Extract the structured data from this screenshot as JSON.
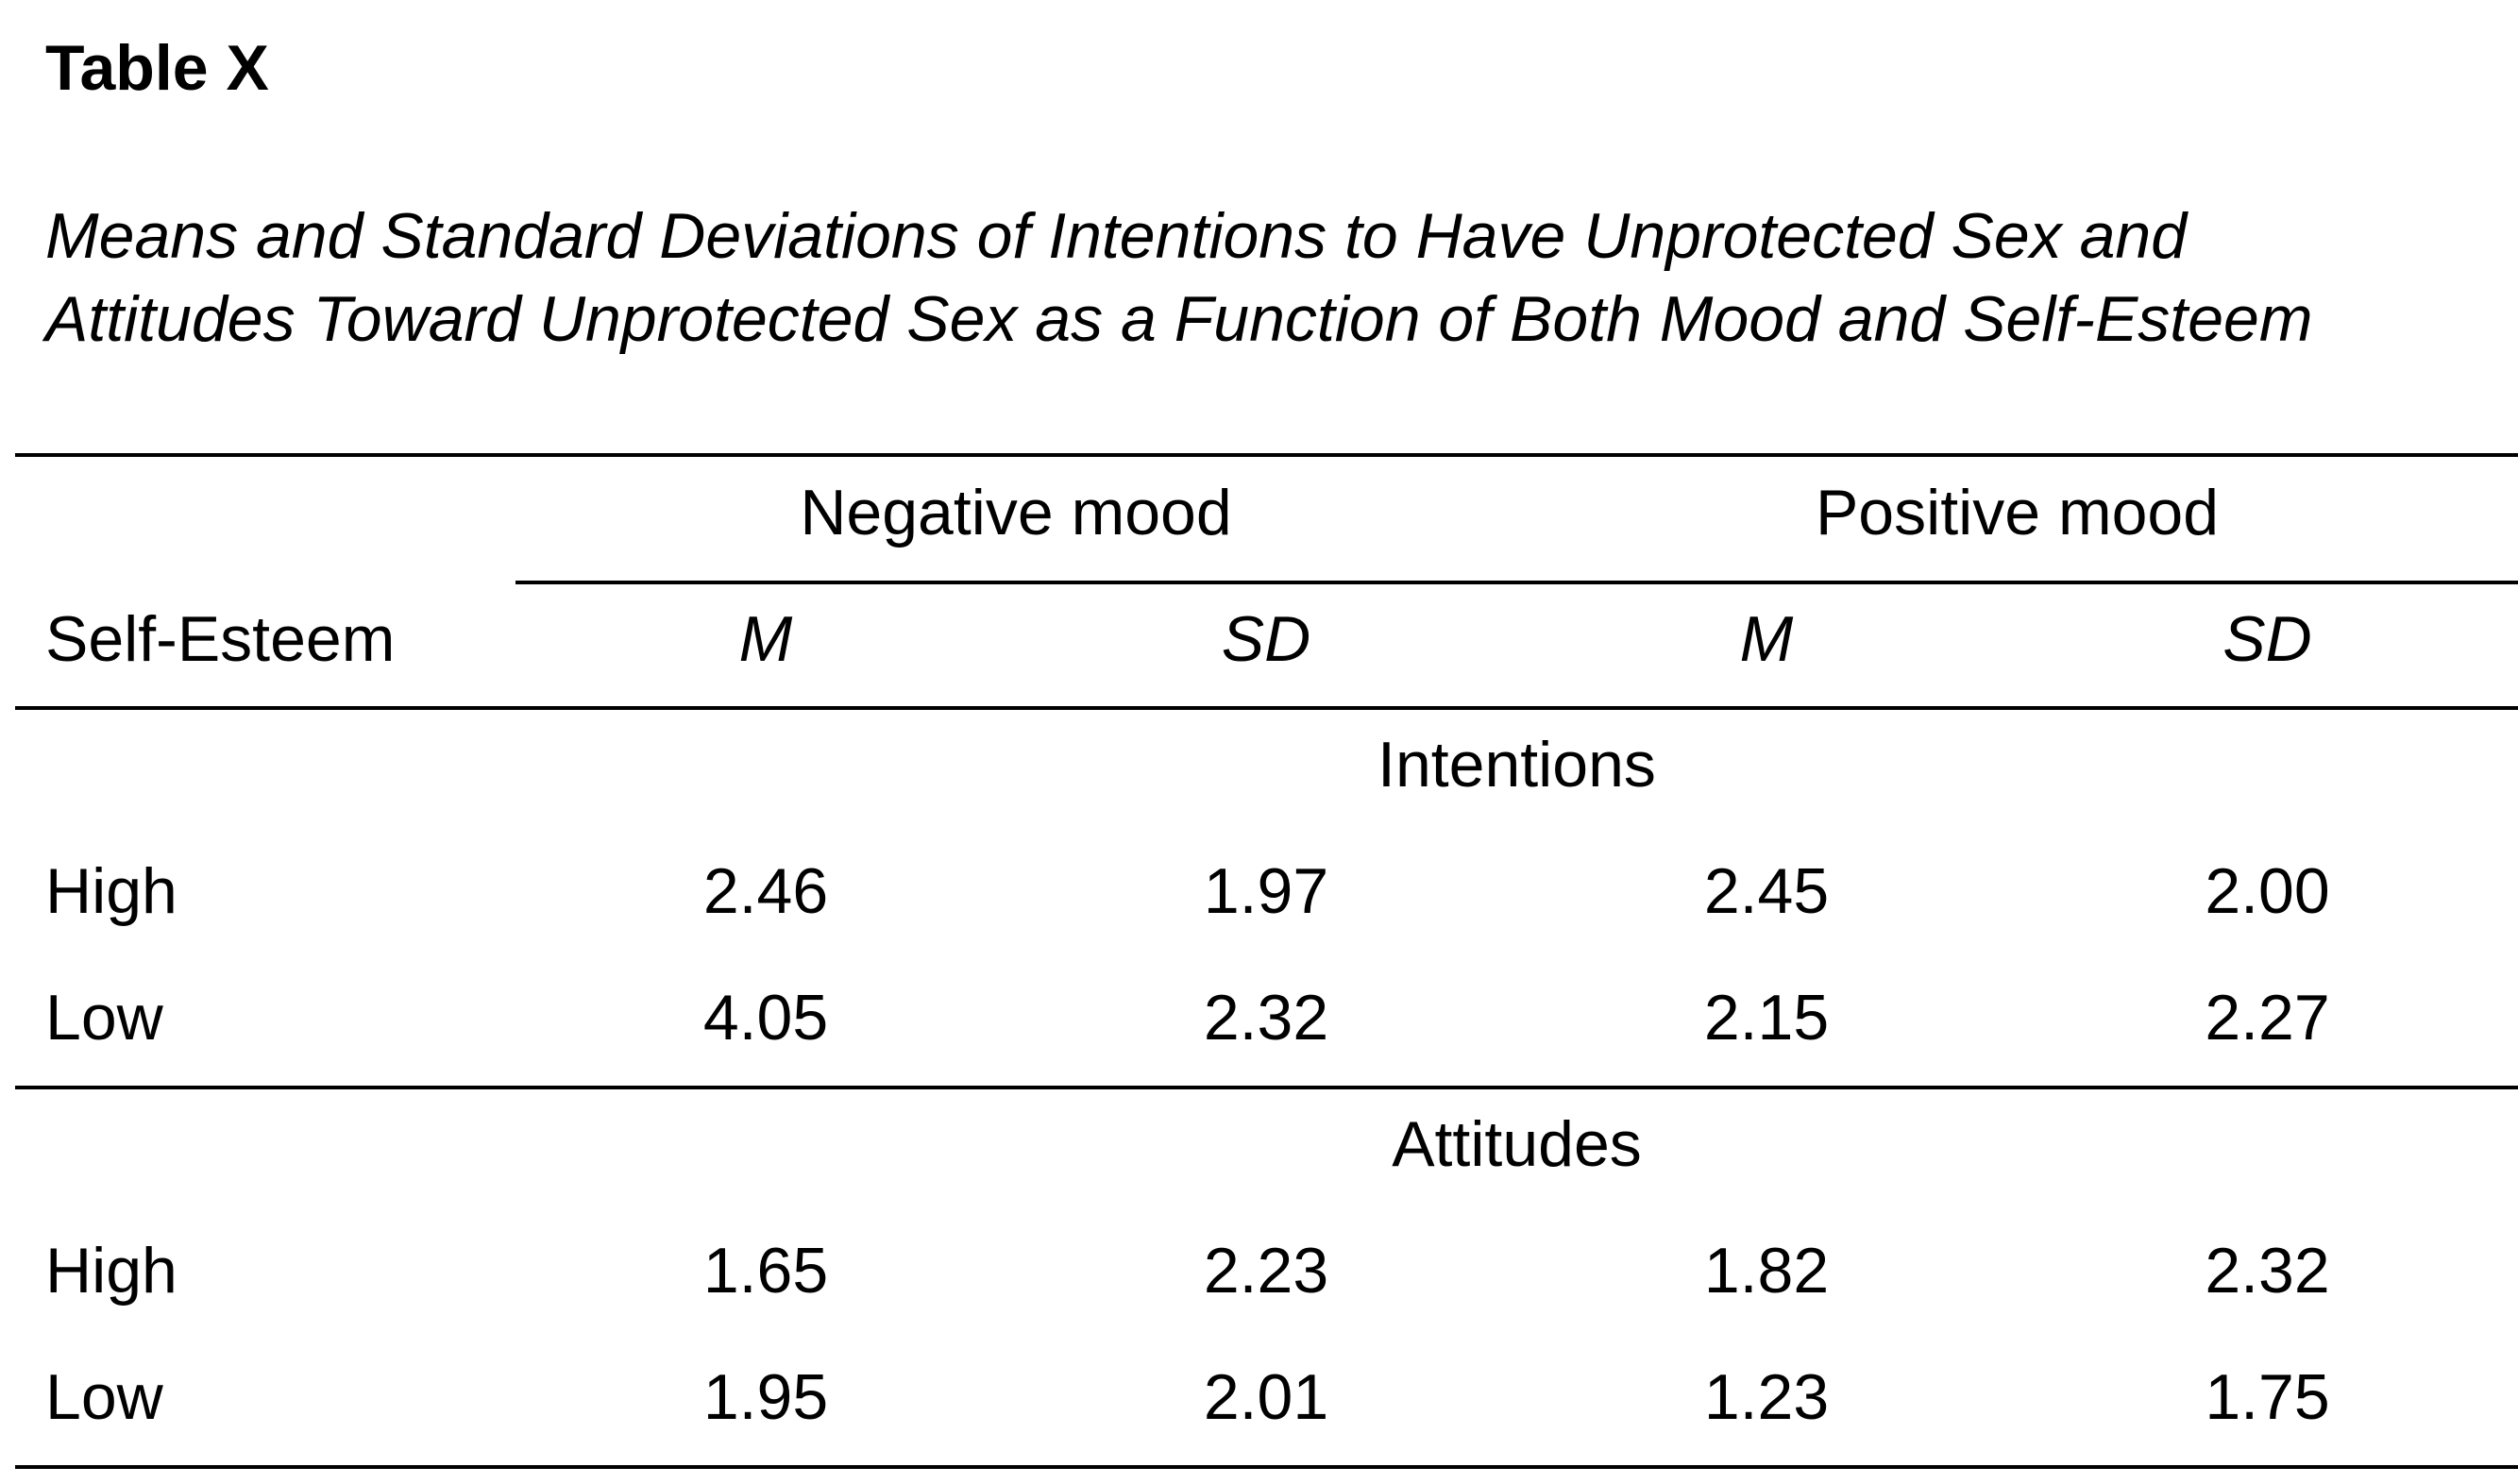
{
  "table": {
    "number": "Table X",
    "title_lines": [
      "Means and Standard Deviations of Intentions to Have Unprotected Sex and",
      "Attitudes Toward Unprotected Sex as a Function of Both Mood and Self-Esteem"
    ],
    "stub_header": "Self-Esteem",
    "spanners": [
      "Negative mood",
      "Positive mood"
    ],
    "column_headers": [
      "M",
      "SD",
      "M",
      "SD"
    ],
    "sections": [
      {
        "label": "Intentions",
        "rows": [
          {
            "label": "High",
            "values": [
              "2.46",
              "1.97",
              "2.45",
              "2.00"
            ]
          },
          {
            "label": "Low",
            "values": [
              "4.05",
              "2.32",
              "2.15",
              "2.27"
            ]
          }
        ]
      },
      {
        "label": "Attitudes",
        "rows": [
          {
            "label": "High",
            "values": [
              "1.65",
              "2.23",
              "1.82",
              "2.32"
            ]
          },
          {
            "label": "Low",
            "values": [
              "1.95",
              "2.01",
              "1.23",
              "1.75"
            ]
          }
        ]
      }
    ]
  }
}
